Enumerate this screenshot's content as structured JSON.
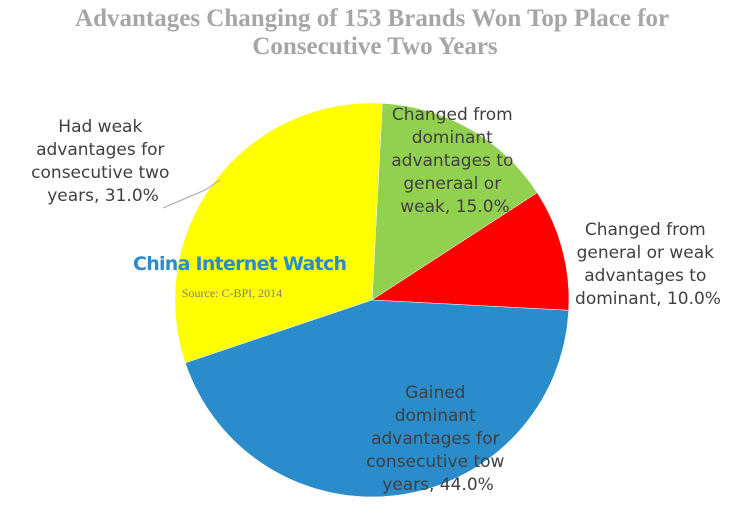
{
  "chart_data": {
    "type": "pie",
    "title": "Advantages Changing of 153 Brands Won Top Place for Consecutive Two Years",
    "values": [
      15.0,
      10.0,
      44.0,
      31.0
    ],
    "value_labels": [
      "Changed from dominant advantages to generaal or weak, 15.0%",
      "Changed from general or weak advantages to dominant, 10.0%",
      "Gained dominant advantages for consecutive tow years, 44.0%",
      "Had weak advantages for consecutive two years, 31.0%"
    ],
    "colors": [
      "#92d050",
      "#ff0000",
      "#2a8cca",
      "#ffff00"
    ],
    "watermark": "China Internet Watch",
    "source": "Source: C-BPI, 2014"
  }
}
